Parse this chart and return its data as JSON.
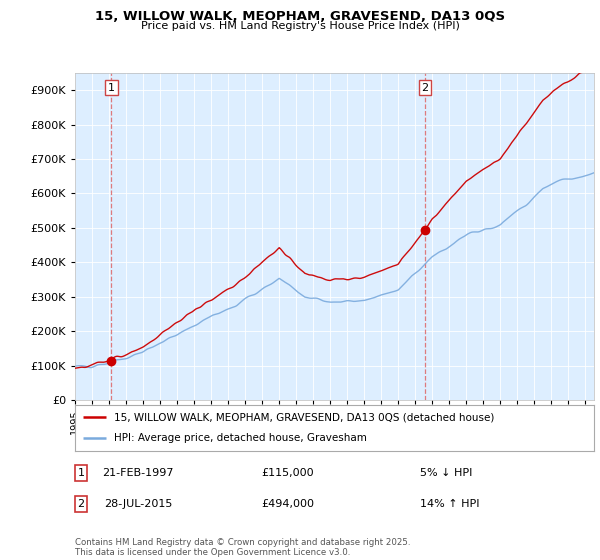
{
  "title_line1": "15, WILLOW WALK, MEOPHAM, GRAVESEND, DA13 0QS",
  "title_line2": "Price paid vs. HM Land Registry's House Price Index (HPI)",
  "legend_line1": "15, WILLOW WALK, MEOPHAM, GRAVESEND, DA13 0QS (detached house)",
  "legend_line2": "HPI: Average price, detached house, Gravesham",
  "transaction1_label": "1",
  "transaction1_date": "21-FEB-1997",
  "transaction1_price": "£115,000",
  "transaction1_hpi": "5% ↓ HPI",
  "transaction2_label": "2",
  "transaction2_date": "28-JUL-2015",
  "transaction2_price": "£494,000",
  "transaction2_hpi": "14% ↑ HPI",
  "footer": "Contains HM Land Registry data © Crown copyright and database right 2025.\nThis data is licensed under the Open Government Licence v3.0.",
  "red_line_color": "#cc0000",
  "blue_line_color": "#7aaadd",
  "dashed_color": "#dd6666",
  "dot_color": "#cc0000",
  "plot_bg_color": "#ddeeff",
  "ylim_min": 0,
  "ylim_max": 950000,
  "year_start": 1995,
  "year_end": 2025,
  "transaction1_year": 1997.13,
  "transaction2_year": 2015.56,
  "transaction1_price_val": 115000,
  "transaction2_price_val": 494000
}
